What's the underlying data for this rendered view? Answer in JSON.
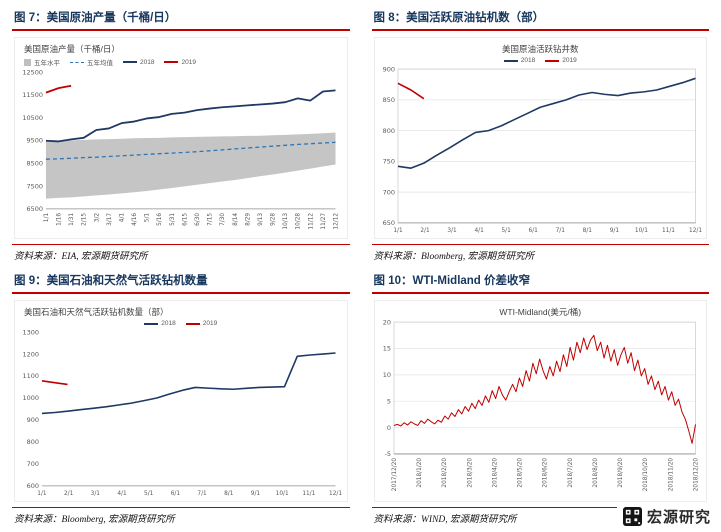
{
  "figures": [
    {
      "header": "图 7：美国原油产量（千桶/日）",
      "source": "资料来源：EIA, 宏源期货研究所"
    },
    {
      "header": "图 8：美国活跃原油钻机数（部）",
      "source": "资料来源：Bloomberg, 宏源期货研究所"
    },
    {
      "header": "图 9：美国石油和天然气活跃钻机数量",
      "source": "资料来源：Bloomberg, 宏源期货研究所"
    },
    {
      "header": "图 10：WTI-Midland 价差收窄",
      "source": "资料来源：WIND, 宏源期货研究所"
    }
  ],
  "watermark": {
    "text": "宏源研究"
  },
  "colors": {
    "accent_red": "#c00000",
    "header_navy": "#17365d",
    "series_navy": "#1f3864",
    "series_red": "#c00000",
    "five_year_band_gray": "#bfbfbf",
    "five_year_avg_blue": "#2e75b6"
  },
  "chart_data": [
    {
      "type": "line",
      "title": "美国原油产量（千桶/日）",
      "title_align": "left",
      "legend_align": "left",
      "legend_position": "top",
      "categories": [
        "1/1",
        "1/16",
        "1/31",
        "2/15",
        "3/2",
        "3/17",
        "4/1",
        "4/16",
        "5/1",
        "5/16",
        "5/31",
        "6/15",
        "6/30",
        "7/15",
        "7/30",
        "8/14",
        "8/29",
        "9/13",
        "9/28",
        "10/13",
        "10/28",
        "11/12",
        "11/27",
        "12/12"
      ],
      "x_tick_rotate": true,
      "ylim": [
        6500,
        12500
      ],
      "ytick_step": 1000,
      "grid": false,
      "frame": false,
      "band": {
        "name": "五年水平",
        "color": "#bfbfbf",
        "low": [
          6950,
          6980,
          7010,
          7050,
          7090,
          7130,
          7180,
          7230,
          7290,
          7350,
          7420,
          7490,
          7560,
          7630,
          7700,
          7770,
          7850,
          7930,
          8010,
          8090,
          8180,
          8270,
          8360,
          8450
        ],
        "high": [
          9520,
          9500,
          9510,
          9530,
          9550,
          9560,
          9580,
          9600,
          9610,
          9620,
          9640,
          9650,
          9660,
          9670,
          9680,
          9690,
          9700,
          9710,
          9730,
          9750,
          9770,
          9790,
          9820,
          9850
        ]
      },
      "series": [
        {
          "name": "五年均值",
          "color": "#2e75b6",
          "dash": "4,3",
          "width": 1.3,
          "values": [
            8680,
            8700,
            8720,
            8750,
            8770,
            8800,
            8830,
            8860,
            8890,
            8920,
            8950,
            8980,
            9010,
            9050,
            9090,
            9130,
            9170,
            9210,
            9250,
            9290,
            9330,
            9360,
            9390,
            9420
          ]
        },
        {
          "name": "2018",
          "color": "#1f3864",
          "width": 1.8,
          "values": [
            9490,
            9460,
            9550,
            9620,
            9960,
            10030,
            10260,
            10330,
            10470,
            10530,
            10670,
            10720,
            10830,
            10900,
            10960,
            11000,
            11040,
            11080,
            11120,
            11180,
            11350,
            11250,
            11650,
            11700
          ]
        },
        {
          "name": "2019",
          "color": "#c00000",
          "width": 1.8,
          "values": [
            11600,
            11800,
            11900
          ]
        }
      ]
    },
    {
      "type": "line",
      "title": "美国原油活跃钻井数",
      "title_align": "center",
      "legend_align": "center",
      "legend_position": "top",
      "categories": [
        "1/1",
        "2/1",
        "3/1",
        "4/1",
        "5/1",
        "6/1",
        "7/1",
        "8/1",
        "9/1",
        "10/1",
        "11/1",
        "12/1"
      ],
      "x_tick_rotate": false,
      "ylim": [
        650,
        900
      ],
      "ytick_step": 50,
      "grid": true,
      "frame": true,
      "series": [
        {
          "name": "2018",
          "color": "#1f3864",
          "width": 1.6,
          "values": [
            742,
            739,
            747,
            760,
            772,
            785,
            797,
            800,
            808,
            818,
            828,
            838,
            844,
            850,
            858,
            862,
            859,
            857,
            861,
            863,
            866,
            872,
            878,
            885
          ]
        },
        {
          "name": "2019",
          "color": "#c00000",
          "width": 1.6,
          "values": [
            877,
            866,
            852
          ]
        }
      ]
    },
    {
      "type": "line",
      "title": "美国石油和天然气活跃钻机数量（部）",
      "title_align": "left",
      "legend_align": "center",
      "legend_position": "top",
      "categories": [
        "1/1",
        "2/1",
        "3/1",
        "4/1",
        "5/1",
        "6/1",
        "7/1",
        "8/1",
        "9/1",
        "10/1",
        "11/1",
        "12/1"
      ],
      "x_tick_rotate": false,
      "ylim": [
        600,
        1300
      ],
      "ytick_step": 100,
      "grid": false,
      "frame": false,
      "series": [
        {
          "name": "2018",
          "color": "#1f3864",
          "width": 1.6,
          "values": [
            930,
            934,
            940,
            947,
            953,
            960,
            968,
            977,
            988,
            1000,
            1018,
            1035,
            1048,
            1045,
            1042,
            1040,
            1044,
            1048,
            1050,
            1052,
            1190,
            1196,
            1200,
            1205
          ]
        },
        {
          "name": "2019",
          "color": "#c00000",
          "width": 1.6,
          "values": [
            1078,
            1070,
            1062
          ]
        }
      ]
    },
    {
      "type": "line",
      "title": "WTI-Midland(美元/桶)",
      "title_align": "center",
      "show_legend": false,
      "categories": [
        "2017/12/20",
        "2018/1/20",
        "2018/2/20",
        "2018/3/20",
        "2018/4/20",
        "2018/5/20",
        "2018/6/20",
        "2018/7/20",
        "2018/8/20",
        "2018/9/20",
        "2018/10/20",
        "2018/11/20",
        "2018/12/20"
      ],
      "x_tick_rotate": true,
      "ylim": [
        -5,
        20
      ],
      "ytick_step": 5,
      "grid": true,
      "frame": true,
      "series": [
        {
          "name": "WTI-Midland",
          "color": "#c00000",
          "width": 1,
          "values": [
            0.4,
            0.6,
            0.3,
            0.9,
            0.5,
            1.1,
            0.7,
            0.4,
            1.3,
            0.8,
            1.6,
            1.1,
            0.7,
            1.4,
            1.0,
            2.2,
            1.6,
            2.8,
            2.1,
            3.4,
            2.6,
            4.0,
            3.1,
            4.6,
            3.6,
            5.2,
            4.2,
            6.0,
            4.8,
            7.0,
            5.5,
            7.8,
            6.2,
            5.2,
            6.8,
            8.2,
            6.8,
            9.4,
            7.8,
            10.8,
            8.8,
            12.2,
            10.2,
            13.0,
            10.8,
            9.2,
            11.6,
            9.8,
            12.6,
            10.6,
            13.8,
            11.6,
            15.2,
            12.8,
            16.2,
            14.2,
            17.0,
            14.8,
            16.6,
            17.5,
            14.6,
            16.2,
            13.2,
            15.6,
            12.6,
            14.8,
            11.8,
            13.8,
            15.2,
            12.2,
            14.2,
            10.8,
            12.8,
            9.8,
            11.2,
            8.2,
            9.8,
            7.2,
            8.8,
            6.2,
            7.8,
            5.2,
            6.8,
            4.2,
            5.4,
            3.0,
            1.6,
            -0.6,
            -3.0,
            0.6
          ]
        }
      ]
    }
  ]
}
